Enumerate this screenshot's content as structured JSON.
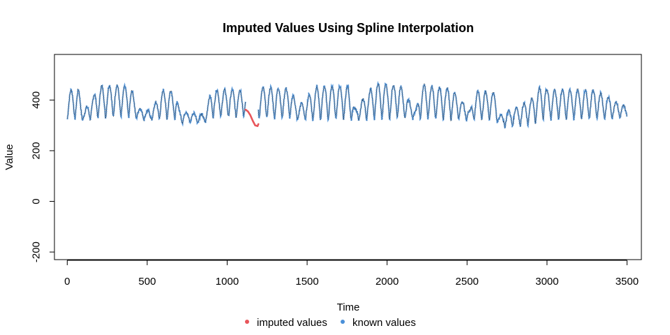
{
  "chart_data": {
    "type": "line",
    "title": "Imputed Values Using Spline Interpolation",
    "xlabel": "Time",
    "ylabel": "Value",
    "xlim": [
      -80,
      3590
    ],
    "ylim": [
      -230,
      580
    ],
    "x_ticks": [
      0,
      500,
      1000,
      1500,
      2000,
      2500,
      3000,
      3500
    ],
    "y_ticks": [
      -200,
      0,
      200,
      400
    ],
    "x_tick_labels": [
      "0",
      "500",
      "1000",
      "1500",
      "2000",
      "2500",
      "3000",
      "3500"
    ],
    "y_tick_labels": [
      "-200",
      "0",
      "200",
      "400"
    ],
    "grid": false,
    "legend_position": "bottom",
    "x_range": [
      1,
      3500
    ],
    "series": [
      {
        "name": "known values",
        "color": "#4A90D9",
        "style": "points",
        "envelope": {
          "x": [
            0,
            30,
            70,
            100,
            200,
            300,
            400,
            440,
            520,
            600,
            680,
            700,
            860,
            900,
            1000,
            1100,
            1250,
            1400,
            1440,
            1560,
            1700,
            1760,
            1800,
            1920,
            2080,
            2180,
            2210,
            2400,
            2520,
            2550,
            2680,
            2700,
            2900,
            2980,
            3000,
            3200,
            3300,
            3500
          ],
          "peak": [
            435,
            440,
            445,
            350,
            455,
            460,
            450,
            370,
            355,
            440,
            435,
            360,
            340,
            440,
            440,
            440,
            450,
            445,
            370,
            455,
            455,
            455,
            360,
            465,
            460,
            355,
            460,
            445,
            360,
            435,
            430,
            340,
            400,
            475,
            440,
            440,
            440,
            370
          ],
          "trough": [
            320,
            320,
            325,
            320,
            325,
            330,
            330,
            325,
            320,
            325,
            320,
            310,
            310,
            330,
            330,
            330,
            325,
            325,
            320,
            315,
            320,
            320,
            320,
            320,
            325,
            325,
            325,
            320,
            320,
            320,
            320,
            290,
            300,
            320,
            320,
            320,
            320,
            330
          ]
        }
      },
      {
        "name": "imputed values",
        "color": "#E8555A",
        "style": "line",
        "x": [
          1115,
          1130,
          1145,
          1160,
          1175,
          1190,
          1195
        ],
        "values": [
          362,
          355,
          340,
          318,
          300,
          297,
          305
        ]
      }
    ]
  }
}
